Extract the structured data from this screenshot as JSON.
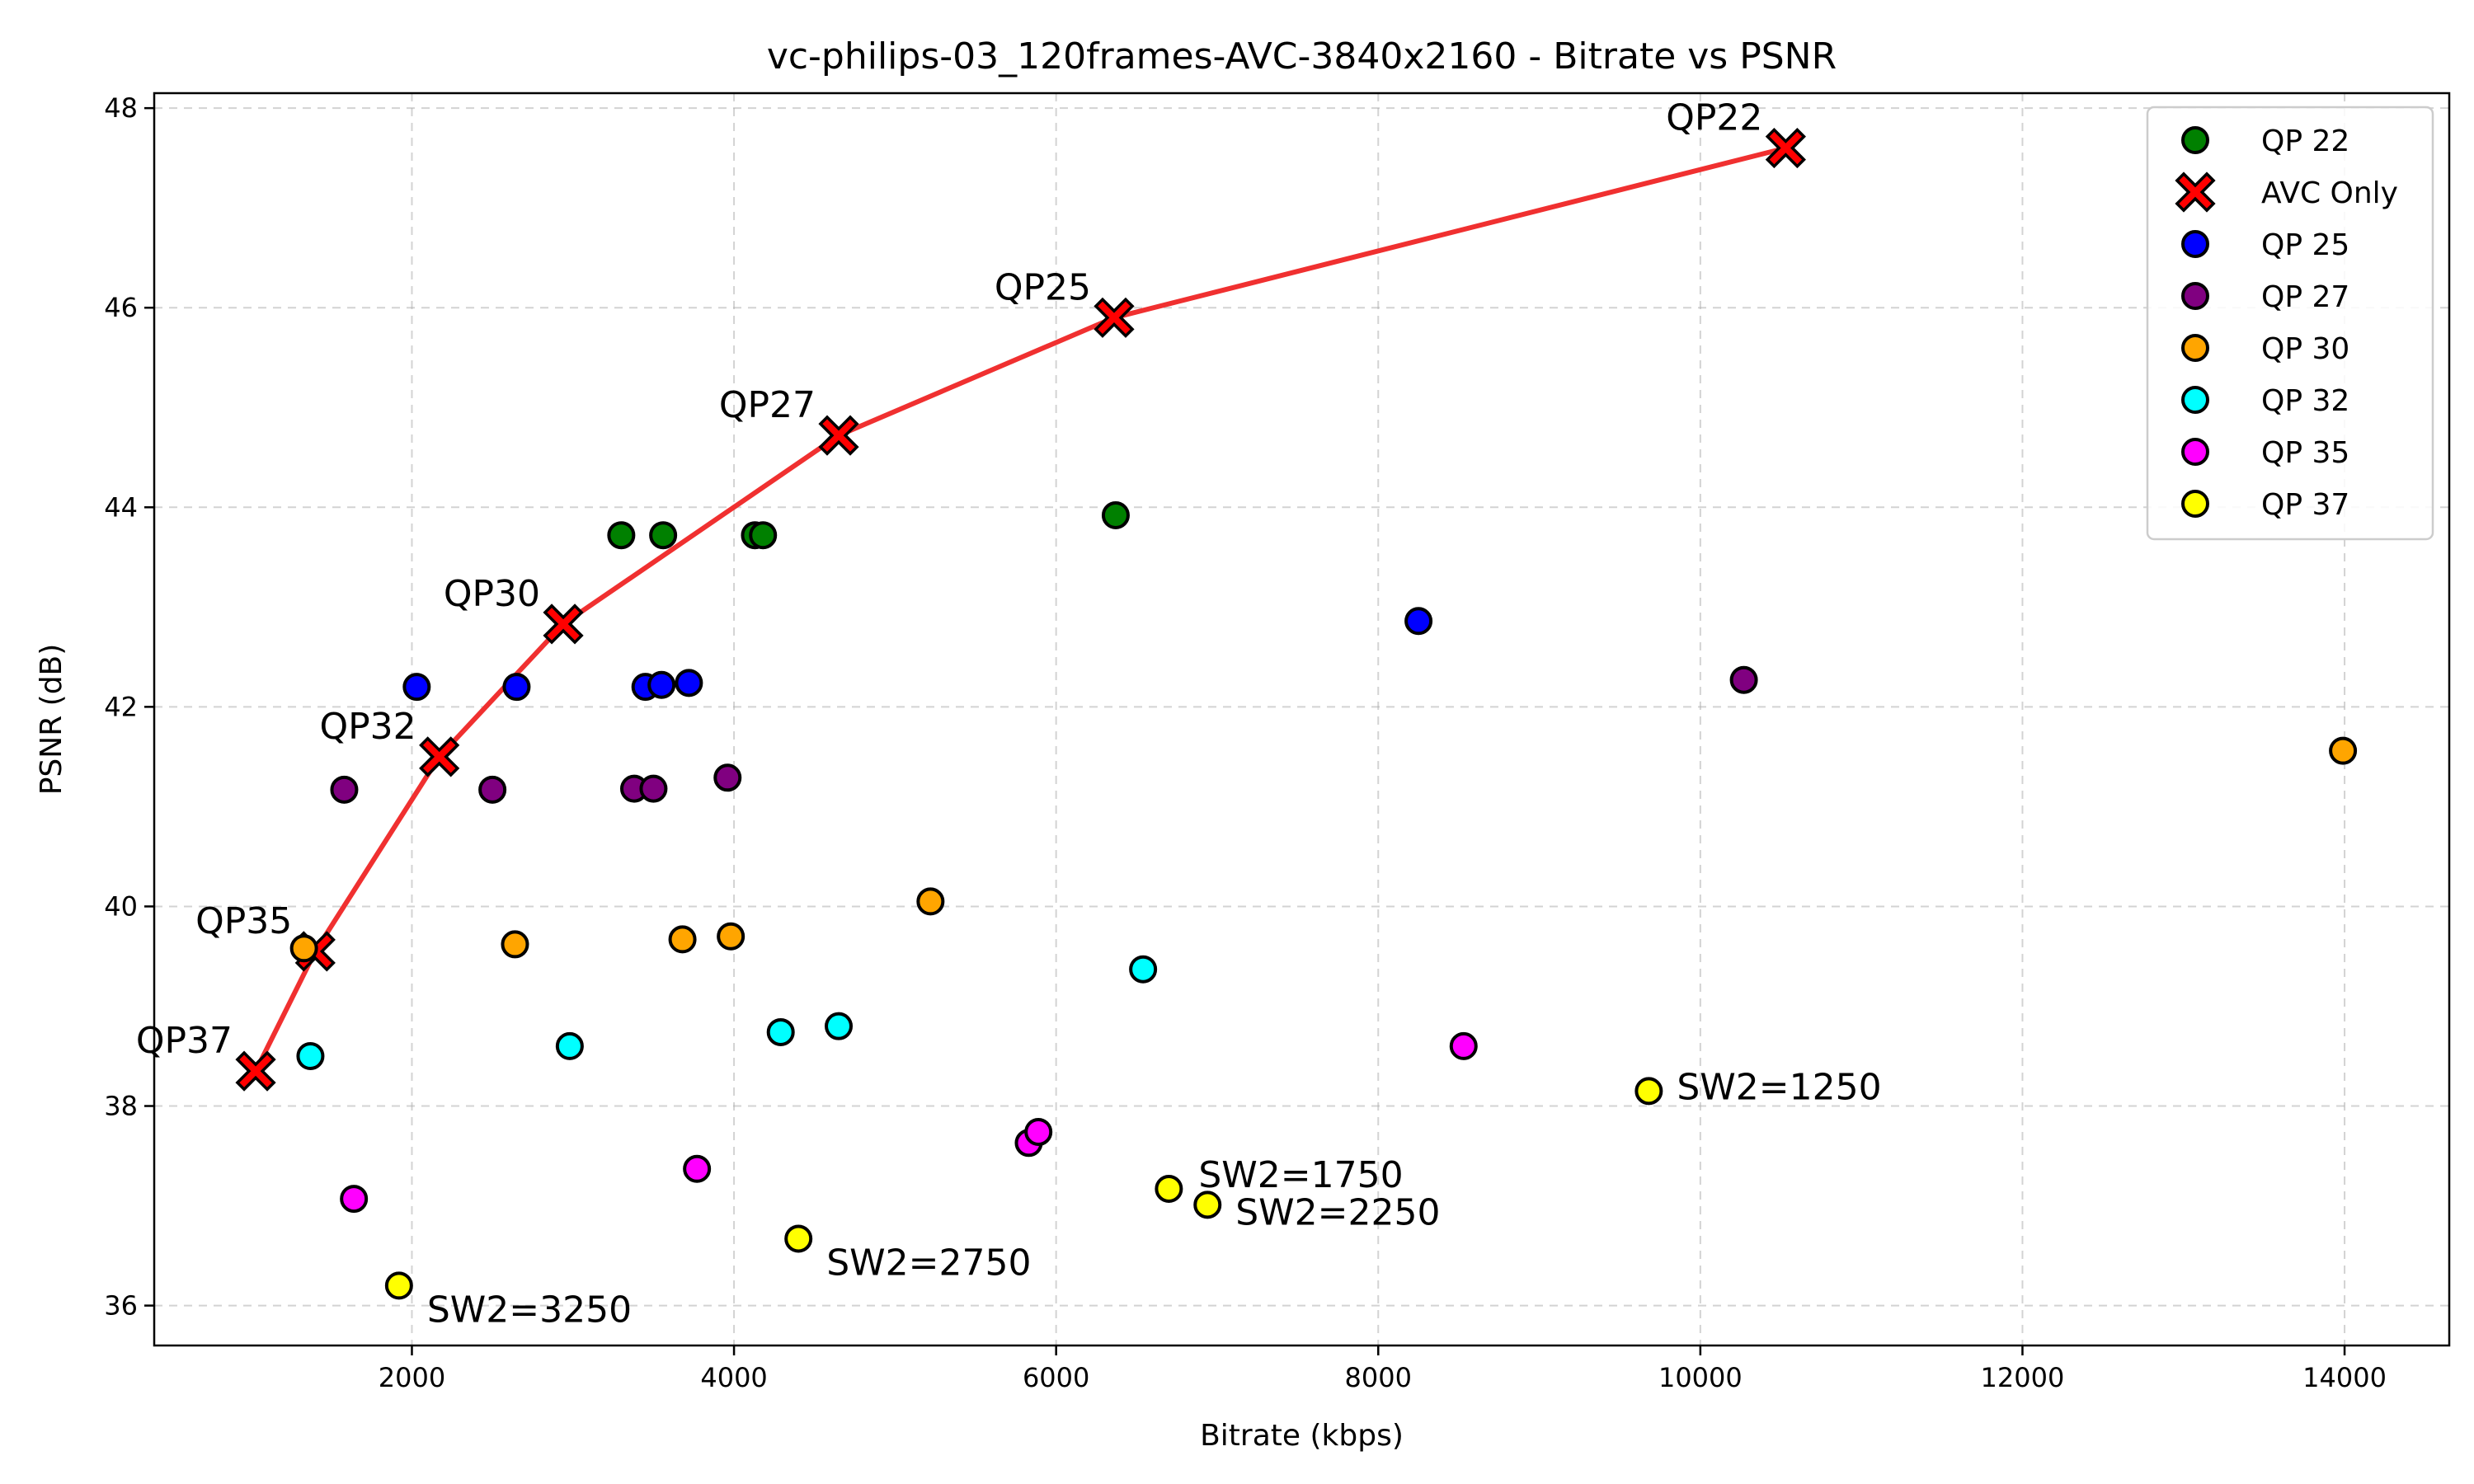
{
  "chart_data": {
    "type": "scatter",
    "title": "vc-philips-03_120frames-AVC-3840x2160 - Bitrate vs PSNR",
    "xlabel": "Bitrate (kbps)",
    "ylabel": "PSNR (dB)",
    "xlim": [
      400,
      14650
    ],
    "ylim": [
      35.6,
      48.15
    ],
    "xticks": [
      2000,
      4000,
      6000,
      8000,
      10000,
      12000,
      14000
    ],
    "yticks": [
      36,
      38,
      40,
      42,
      44,
      46,
      48
    ],
    "grid": true,
    "legend_position": "top-right",
    "series": [
      {
        "name": "QP 22",
        "color": "#008000",
        "marker": "circle",
        "x": [
          3300,
          3560,
          4130,
          4180,
          6370
        ],
        "y": [
          43.72,
          43.72,
          43.72,
          43.72,
          43.92
        ]
      },
      {
        "name": "AVC Only",
        "color": "#ff0000",
        "marker": "x",
        "line": true,
        "line_color": "#f03030",
        "x": [
          1030,
          1400,
          2170,
          2940,
          4650,
          6360,
          10530
        ],
        "y": [
          38.35,
          39.55,
          41.5,
          42.83,
          44.72,
          45.9,
          47.6
        ],
        "labels": [
          "QP37",
          "QP35",
          "QP32",
          "QP30",
          "QP27",
          "QP25",
          "QP22"
        ]
      },
      {
        "name": "QP 25",
        "color": "#0000ff",
        "marker": "circle",
        "x": [
          2030,
          2650,
          3450,
          3550,
          3720,
          8250
        ],
        "y": [
          42.2,
          42.2,
          42.2,
          42.22,
          42.24,
          42.86
        ]
      },
      {
        "name": "QP 27",
        "color": "#800080",
        "marker": "circle",
        "x": [
          1580,
          2500,
          3380,
          3500,
          3960,
          10270
        ],
        "y": [
          41.17,
          41.17,
          41.18,
          41.18,
          41.29,
          42.27
        ]
      },
      {
        "name": "QP 30",
        "color": "#ffa500",
        "marker": "circle",
        "x": [
          1330,
          2640,
          3680,
          3980,
          5220,
          13990
        ],
        "y": [
          39.58,
          39.62,
          39.67,
          39.7,
          40.05,
          41.56
        ]
      },
      {
        "name": "QP 32",
        "color": "#00ffff",
        "marker": "circle",
        "x": [
          1370,
          2980,
          4290,
          4650,
          6540
        ],
        "y": [
          38.5,
          38.6,
          38.74,
          38.8,
          39.37
        ]
      },
      {
        "name": "QP 35",
        "color": "#ff00ff",
        "marker": "circle",
        "x": [
          1640,
          3770,
          5830,
          5890,
          8530
        ],
        "y": [
          37.07,
          37.37,
          37.63,
          37.74,
          38.6
        ]
      },
      {
        "name": "QP 37",
        "color": "#ffff00",
        "marker": "circle",
        "x": [
          1920,
          4400,
          6700,
          6940,
          9680
        ],
        "y": [
          36.2,
          36.67,
          37.17,
          37.01,
          38.15
        ],
        "labels": [
          "SW2=3250",
          "SW2=2750",
          "SW2=1750",
          "SW2=2250",
          "SW2=1250"
        ]
      }
    ]
  }
}
